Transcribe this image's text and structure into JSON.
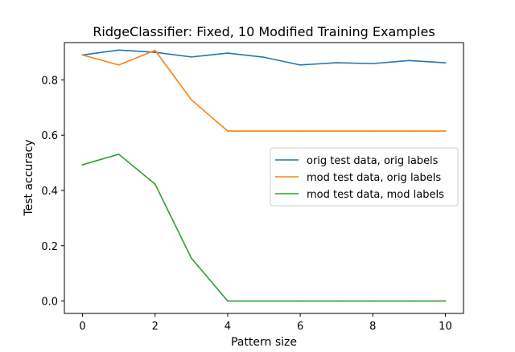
{
  "chart_data": {
    "type": "line",
    "title": "RidgeClassifier: Fixed, 10 Modified Training Examples",
    "xlabel": "Pattern size",
    "ylabel": "Test accuracy",
    "x": [
      0,
      1,
      2,
      3,
      4,
      5,
      6,
      7,
      8,
      9,
      10
    ],
    "xlim": [
      -0.5,
      10.5
    ],
    "ylim": [
      -0.045,
      0.935
    ],
    "xticks": [
      0,
      2,
      4,
      6,
      8,
      10
    ],
    "yticks": [
      0.0,
      0.2,
      0.4,
      0.6,
      0.8
    ],
    "xtick_labels": [
      "0",
      "2",
      "4",
      "6",
      "8",
      "10"
    ],
    "ytick_labels": [
      "0.0",
      "0.2",
      "0.4",
      "0.6",
      "0.8"
    ],
    "grid": false,
    "legend_position": "center-right",
    "series": [
      {
        "name": "orig test data, orig labels",
        "color": "#1f77b4",
        "values": [
          0.89,
          0.908,
          0.9,
          0.883,
          0.897,
          0.882,
          0.854,
          0.862,
          0.859,
          0.87,
          0.862
        ]
      },
      {
        "name": "mod test data, orig labels",
        "color": "#ff7f0e",
        "values": [
          0.89,
          0.854,
          0.907,
          0.728,
          0.615,
          0.615,
          0.615,
          0.615,
          0.615,
          0.615,
          0.615
        ]
      },
      {
        "name": "mod test data, mod labels",
        "color": "#2ca02c",
        "values": [
          0.493,
          0.531,
          0.423,
          0.155,
          0.0,
          0.0,
          0.0,
          0.0,
          0.0,
          0.0,
          0.0
        ]
      }
    ]
  }
}
